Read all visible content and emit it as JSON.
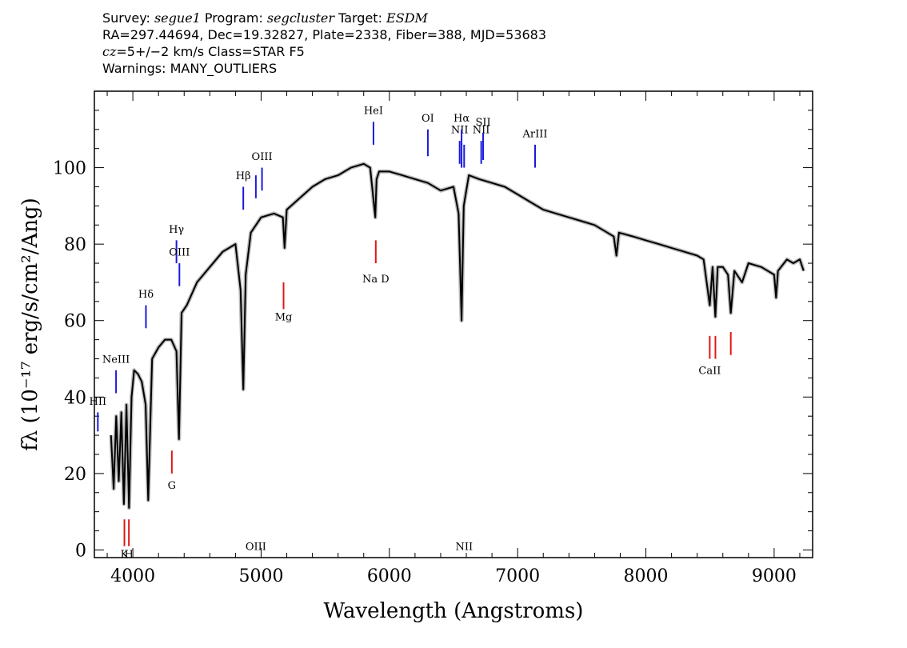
{
  "header": {
    "line1": {
      "survey_label": "Survey: ",
      "survey": "segue1",
      "program_label": " Program: ",
      "program": "segcluster",
      "target_label": " Target: ",
      "target": "ESDM"
    },
    "line2": "RA=297.44694, Dec=19.32827, Plate=2338, Fiber=388, MJD=53683",
    "line3": {
      "cz": "cz",
      "rest": "=5+/−2 km/s Class=STAR F5"
    },
    "line4": "Warnings: MANY_OUTLIERS"
  },
  "chart_data": {
    "type": "line",
    "xlabel": "Wavelength (Angstroms)",
    "ylabel": "fλ (10⁻¹⁷ erg/s/cm²/Ang)",
    "xlim": [
      3700,
      9300
    ],
    "ylim": [
      -2,
      120
    ],
    "x_ticks": [
      4000,
      5000,
      6000,
      7000,
      8000,
      9000
    ],
    "y_ticks": [
      0,
      20,
      40,
      60,
      80,
      100
    ],
    "series": [
      {
        "color": "#000000",
        "x": [
          3830,
          3850,
          3870,
          3890,
          3910,
          3930,
          3950,
          3970,
          3990,
          4010,
          4040,
          4070,
          4100,
          4120,
          4150,
          4200,
          4250,
          4300,
          4340,
          4360,
          4380,
          4420,
          4500,
          4600,
          4700,
          4800,
          4840,
          4861,
          4880,
          4920,
          5000,
          5100,
          5170,
          5183,
          5200,
          5300,
          5400,
          5500,
          5600,
          5700,
          5800,
          5850,
          5890,
          5900,
          5920,
          6000,
          6100,
          6200,
          6300,
          6400,
          6500,
          6540,
          6563,
          6580,
          6620,
          6700,
          6800,
          6900,
          7000,
          7100,
          7200,
          7300,
          7400,
          7500,
          7600,
          7700,
          7750,
          7770,
          7790,
          7900,
          8000,
          8100,
          8200,
          8300,
          8400,
          8450,
          8498,
          8520,
          8542,
          8560,
          8600,
          8640,
          8662,
          8690,
          8750,
          8800,
          8900,
          9000,
          9015,
          9030,
          9100,
          9150,
          9200,
          9230
        ],
        "y": [
          30,
          16,
          35,
          18,
          36,
          12,
          38,
          11,
          40,
          47,
          46,
          44,
          38,
          13,
          50,
          53,
          55,
          55,
          52,
          29,
          62,
          64,
          70,
          74,
          78,
          80,
          68,
          42,
          72,
          83,
          87,
          88,
          87,
          79,
          89,
          92,
          95,
          97,
          98,
          100,
          101,
          100,
          87,
          97,
          99,
          99,
          98,
          97,
          96,
          94,
          95,
          88,
          60,
          90,
          98,
          97,
          96,
          95,
          93,
          91,
          89,
          88,
          87,
          86,
          85,
          83,
          82,
          77,
          83,
          82,
          81,
          80,
          79,
          78,
          77,
          76,
          64,
          74,
          61,
          74,
          74,
          72,
          62,
          73,
          70,
          75,
          74,
          72,
          66,
          73,
          76,
          75,
          76,
          73
        ]
      }
    ],
    "emission_lines": [
      {
        "label": "HII",
        "x": 3727,
        "label_y": 38,
        "y1": 36,
        "y2": 31
      },
      {
        "label": "NeIII",
        "x": 3869,
        "label_y": 49,
        "y1": 47,
        "y2": 41
      },
      {
        "label": "Hδ",
        "x": 4102,
        "label_y": 66,
        "y1": 64,
        "y2": 58
      },
      {
        "label": "Hγ",
        "x": 4340,
        "label_y": 83,
        "y1": 81,
        "y2": 75
      },
      {
        "label": "OIII",
        "x": 4363,
        "label_y": 77,
        "y1": 75,
        "y2": 69
      },
      {
        "label": "Hβ",
        "x": 4861,
        "label_y": 97,
        "y1": 95,
        "y2": 89
      },
      {
        "label": "OIII",
        "x": 4959,
        "label_y": 0,
        "y1": 98,
        "y2": 92
      },
      {
        "label": "OIII",
        "x": 5007,
        "label_y": 102,
        "y1": 100,
        "y2": 94
      },
      {
        "label": "HeI",
        "x": 5876,
        "label_y": 114,
        "y1": 112,
        "y2": 106
      },
      {
        "label": "OI",
        "x": 6300,
        "label_y": 112,
        "y1": 110,
        "y2": 103
      },
      {
        "label": "NII",
        "x": 6548,
        "label_y": 109,
        "y1": 107,
        "y2": 101
      },
      {
        "label": "Hα",
        "x": 6563,
        "label_y": 112,
        "y1": 110,
        "y2": 100
      },
      {
        "label": "NII",
        "x": 6583,
        "label_y": 0,
        "y1": 106,
        "y2": 100
      },
      {
        "label": "NII",
        "x": 6716,
        "label_y": 109,
        "y1": 107,
        "y2": 101
      },
      {
        "label": "SII",
        "x": 6731,
        "label_y": 111,
        "y1": 109,
        "y2": 102
      },
      {
        "label": "ArIII",
        "x": 7136,
        "label_y": 108,
        "y1": 106,
        "y2": 100
      }
    ],
    "absorption_lines": [
      {
        "label": "K",
        "x": 3934,
        "label_y": -2,
        "y1": 8,
        "y2": 1
      },
      {
        "label": "H",
        "x": 3969,
        "label_y": -2,
        "y1": 8,
        "y2": 1
      },
      {
        "label": "G",
        "x": 4304,
        "label_y": 16,
        "y1": 26,
        "y2": 20
      },
      {
        "label": "Mg",
        "x": 5175,
        "label_y": 60,
        "y1": 70,
        "y2": 63
      },
      {
        "label": "Na D",
        "x": 5894,
        "label_y": 70,
        "y1": 81,
        "y2": 75
      },
      {
        "label": "CaII",
        "x": 8498,
        "label_y": 46,
        "y1": 56,
        "y2": 50
      },
      {
        "label": "",
        "x": 8542,
        "label_y": 0,
        "y1": 56,
        "y2": 50
      },
      {
        "label": "",
        "x": 8662,
        "label_y": 0,
        "y1": 57,
        "y2": 51
      }
    ]
  }
}
